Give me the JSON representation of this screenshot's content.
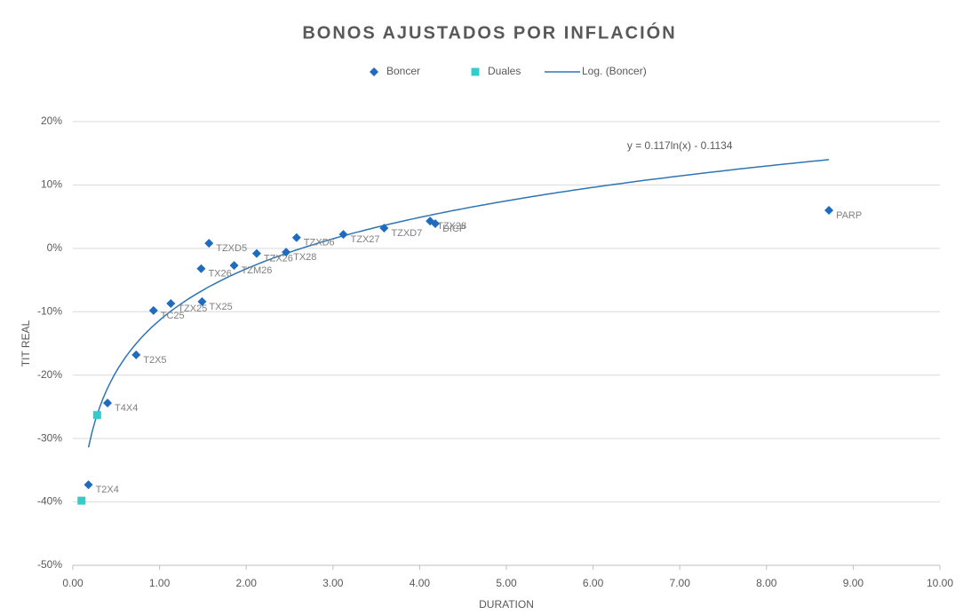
{
  "chart_data": {
    "type": "scatter",
    "title": "BONOS AJUSTADOS POR INFLACIÓN",
    "x_label": "DURATION",
    "y_label": "TIT REAL",
    "xlim": [
      0,
      10
    ],
    "ylim": [
      -50,
      20
    ],
    "xticks": [
      {
        "value": 0,
        "label": "0.00"
      },
      {
        "value": 1,
        "label": "1.00"
      },
      {
        "value": 2,
        "label": "2.00"
      },
      {
        "value": 3,
        "label": "3.00"
      },
      {
        "value": 4,
        "label": "4.00"
      },
      {
        "value": 5,
        "label": "5.00"
      },
      {
        "value": 6,
        "label": "6.00"
      },
      {
        "value": 7,
        "label": "7.00"
      },
      {
        "value": 8,
        "label": "8.00"
      },
      {
        "value": 9,
        "label": "9.00"
      },
      {
        "value": 10,
        "label": "10.00"
      }
    ],
    "yticks": [
      {
        "value": -50,
        "label": "-50%"
      },
      {
        "value": -40,
        "label": "-40%"
      },
      {
        "value": -30,
        "label": "-30%"
      },
      {
        "value": -20,
        "label": "-20%"
      },
      {
        "value": -10,
        "label": "-10%"
      },
      {
        "value": 0,
        "label": "0%"
      },
      {
        "value": 10,
        "label": "10%"
      },
      {
        "value": 20,
        "label": "20%"
      }
    ],
    "grid": true,
    "legend": "top",
    "series": [
      {
        "name": "Boncer",
        "color": "#1f6cbf",
        "marker": "diamond",
        "x": [
          0.18,
          0.4,
          0.73,
          0.93,
          1.13,
          1.49,
          1.48,
          1.57,
          1.86,
          2.12,
          2.46,
          2.58,
          3.12,
          3.59,
          4.12,
          4.18,
          8.72
        ],
        "values": [
          -37.3,
          -24.4,
          -16.8,
          -9.8,
          -8.7,
          -8.4,
          -3.2,
          0.8,
          -2.7,
          -0.8,
          -0.6,
          1.7,
          2.2,
          3.2,
          4.3,
          3.9,
          6.0
        ],
        "labels": [
          "T2X4",
          "T4X4",
          "T2X5",
          "TC25",
          "TZX25",
          "TX25",
          "TX26",
          "TZXD5",
          "TZM26",
          "TZX26",
          "TX28",
          "TZXD6",
          "TZX27",
          "TZXD7",
          "TZX28",
          "DICP",
          "PARP"
        ]
      },
      {
        "name": "Duales",
        "color": "#33cccc",
        "marker": "square",
        "x": [
          0.1,
          0.28
        ],
        "values": [
          -39.8,
          -26.3
        ]
      }
    ],
    "trendline": {
      "name": "Log. (Boncer)",
      "color": "#2e75b6",
      "a": 11.7,
      "b": -11.34,
      "label": "y = 0.117ln(x) - 0.1134"
    }
  }
}
